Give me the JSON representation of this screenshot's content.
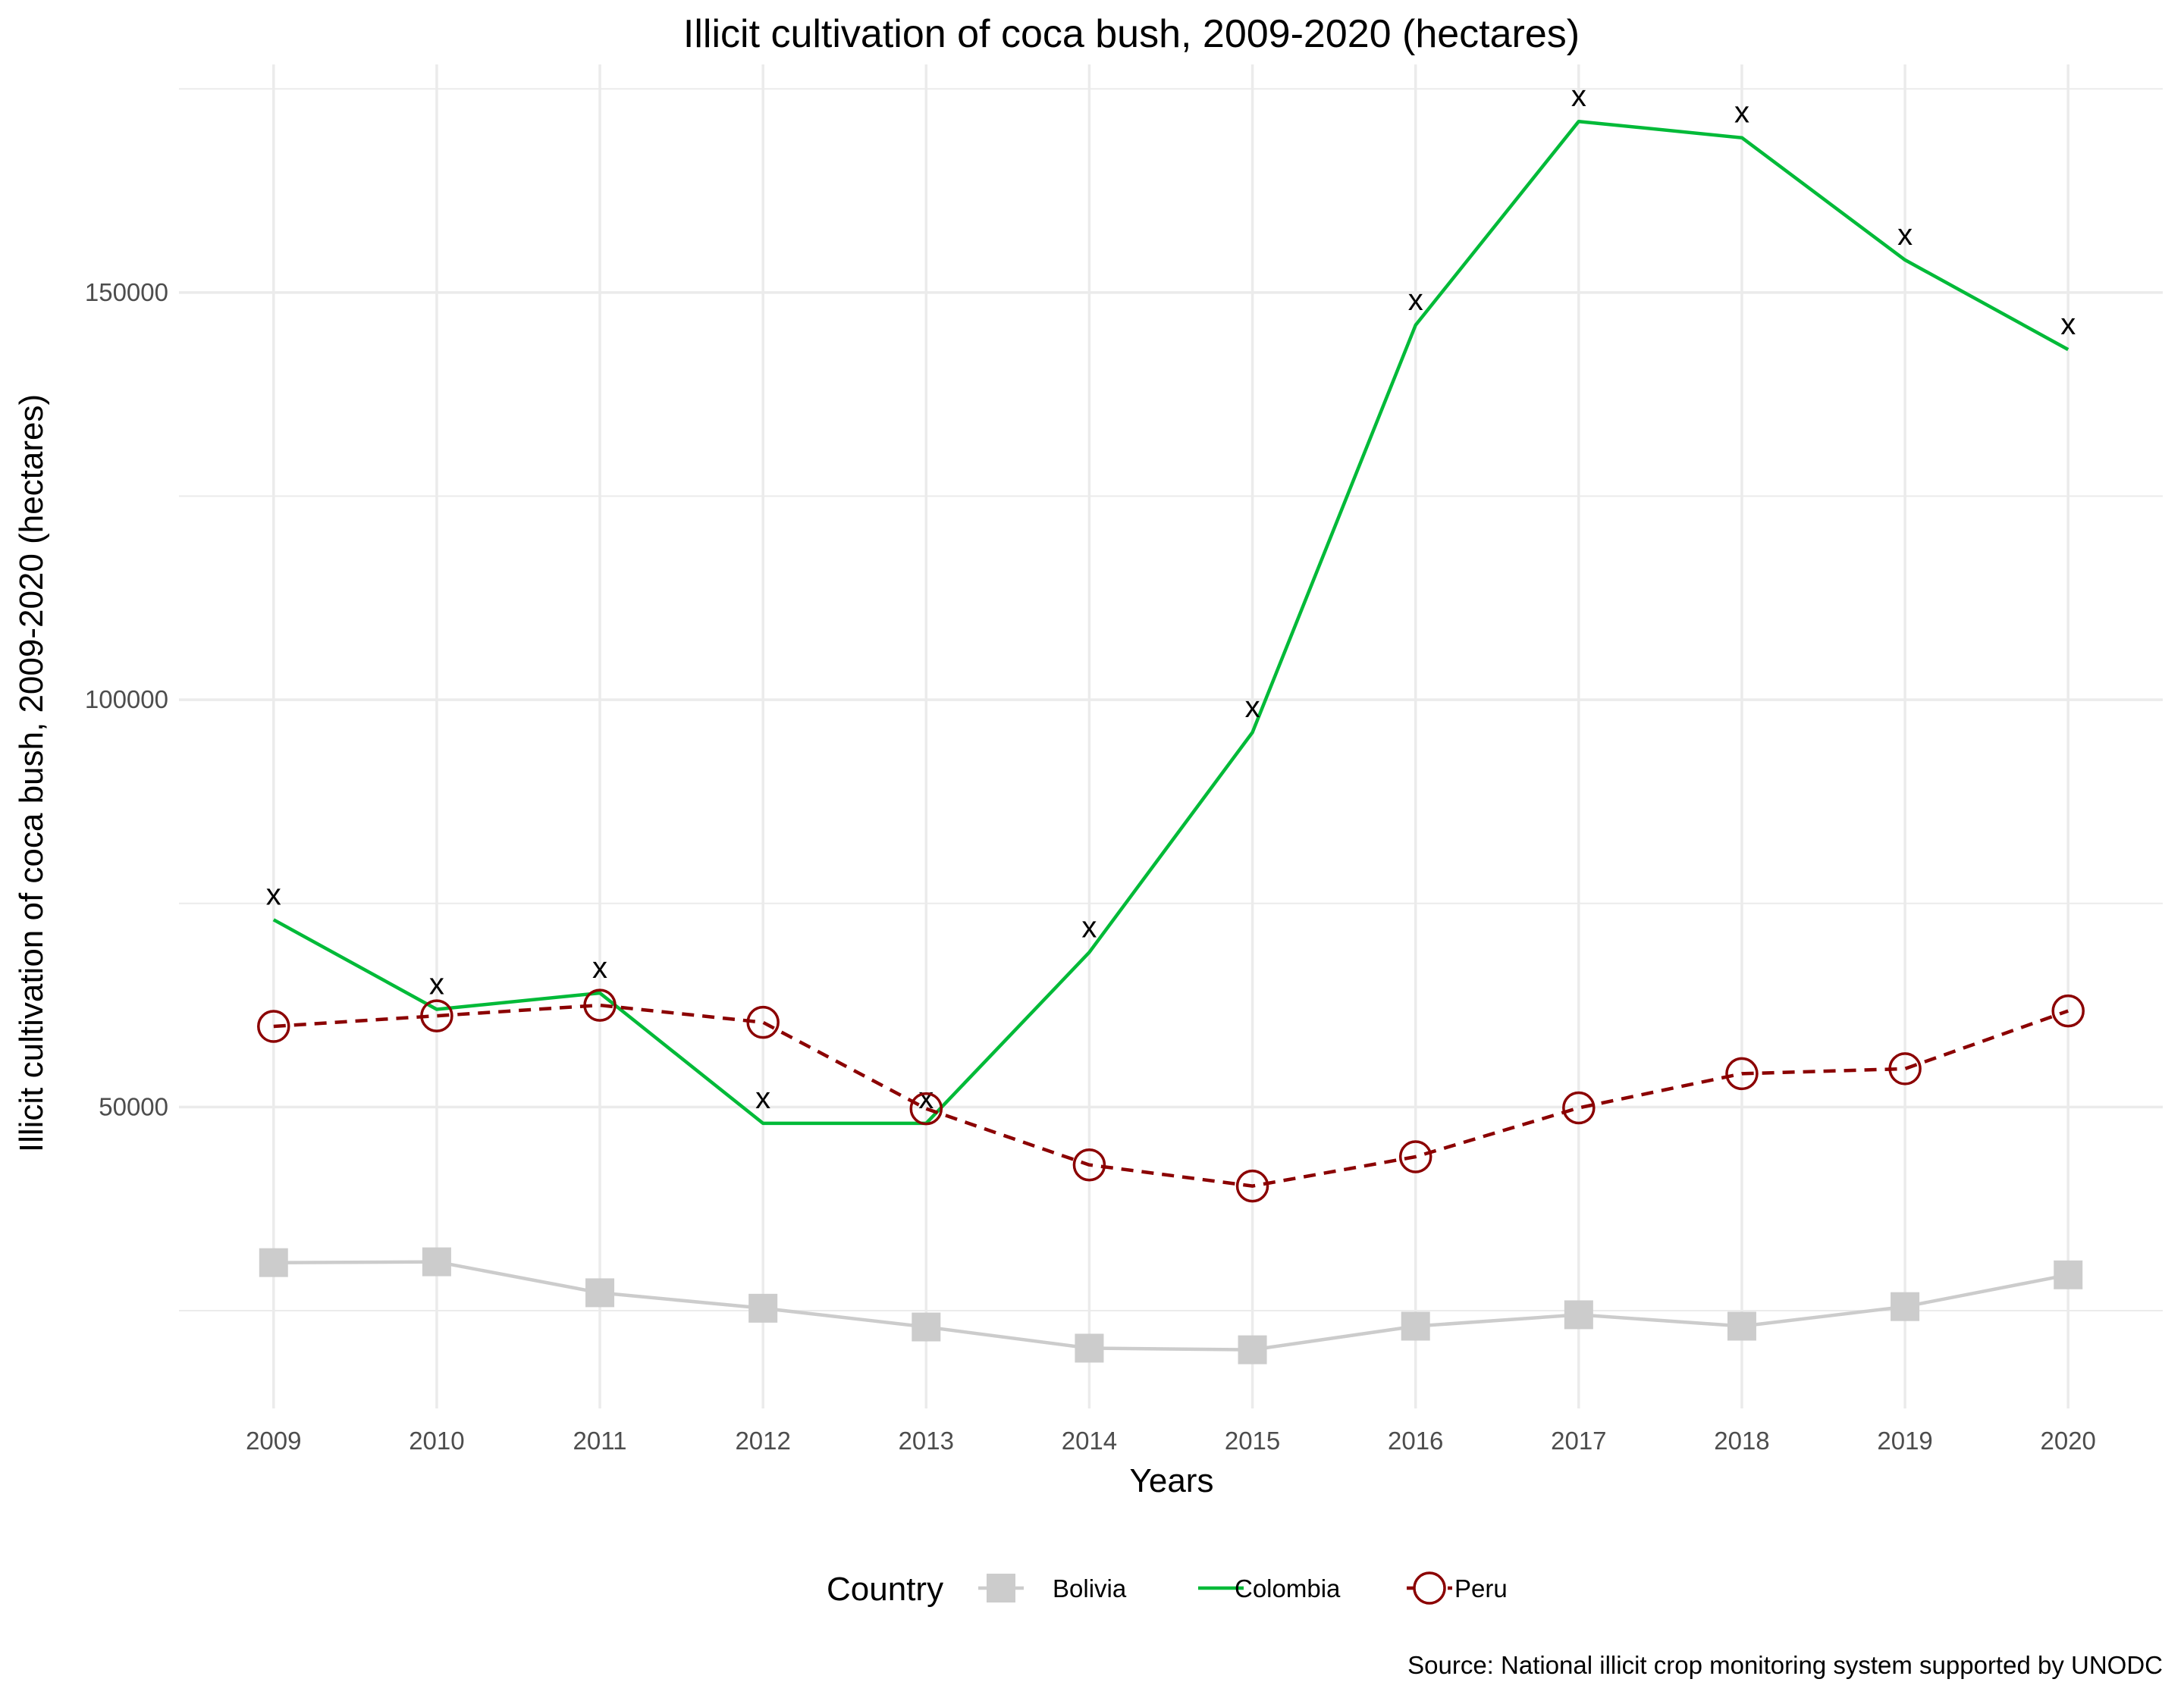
{
  "chart_data": {
    "type": "line",
    "title": "Illicit cultivation of coca bush, 2009-2020 (hectares)",
    "xlabel": "Years",
    "ylabel": "Illicit cultivation of coca bush, 2009-2020 (hectares)",
    "caption": "Source: National illicit crop monitoring system supported by UNODC",
    "x": [
      2009,
      2010,
      2011,
      2012,
      2013,
      2014,
      2015,
      2016,
      2017,
      2018,
      2019,
      2020
    ],
    "x_tick_labels": [
      "2009",
      "2010",
      "2011",
      "2012",
      "2013",
      "2014",
      "2015",
      "2016",
      "2017",
      "2018",
      "2019",
      "2020"
    ],
    "ylim": [
      13000,
      178000
    ],
    "y_ticks": [
      50000,
      100000,
      150000
    ],
    "y_tick_labels": [
      "50000",
      "100000",
      "150000"
    ],
    "grid": true,
    "legend": {
      "title": "Country",
      "position": "bottom"
    },
    "series": [
      {
        "name": "Bolivia",
        "color": "#cccccc",
        "line": "solid",
        "marker": "square",
        "values": [
          30900,
          31000,
          27200,
          25300,
          23000,
          20400,
          20200,
          23100,
          24500,
          23100,
          25500,
          29400
        ]
      },
      {
        "name": "Colombia",
        "color": "#00ba38",
        "line": "solid",
        "marker": "x",
        "values": [
          73000,
          62000,
          64000,
          48000,
          48000,
          69000,
          96000,
          146000,
          171000,
          169000,
          154000,
          143000
        ]
      },
      {
        "name": "Peru",
        "color": "#8b0000",
        "line": "dashed",
        "marker": "open-circle",
        "values": [
          59900,
          61200,
          62500,
          60400,
          49800,
          42900,
          40300,
          43900,
          49900,
          54100,
          54700,
          61800
        ]
      }
    ]
  }
}
